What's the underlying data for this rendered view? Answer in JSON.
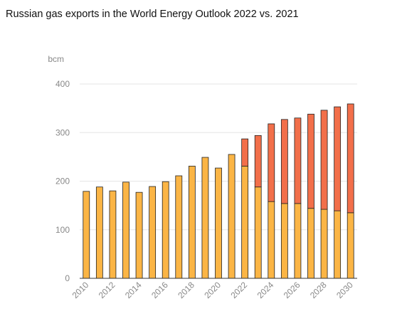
{
  "chart_data": {
    "type": "stacked_bar",
    "title": "Russian gas exports in the World Energy Outlook 2022 vs. 2021",
    "y_label": "bcm",
    "categories": [
      "2010",
      null,
      "2012",
      null,
      "2014",
      null,
      "2016",
      null,
      "2018",
      null,
      "2020",
      null,
      "2022",
      null,
      "2024",
      null,
      "2026",
      null,
      "2028",
      null,
      "2030"
    ],
    "series": [
      {
        "color": "#fbb545",
        "values": [
          179,
          188,
          180,
          198,
          177,
          189,
          199,
          211,
          231,
          249,
          227,
          255,
          231,
          188,
          158,
          154,
          154,
          144,
          142,
          139,
          135
        ]
      },
      {
        "color": "#f26f4a",
        "values": [
          null,
          null,
          null,
          null,
          null,
          null,
          null,
          null,
          null,
          null,
          null,
          null,
          56,
          106,
          160,
          173,
          176,
          194,
          204,
          214,
          224
        ]
      }
    ],
    "ylim": [
      0,
      400
    ],
    "yticks": [
      0,
      100,
      200,
      300,
      400
    ],
    "grid": true
  }
}
